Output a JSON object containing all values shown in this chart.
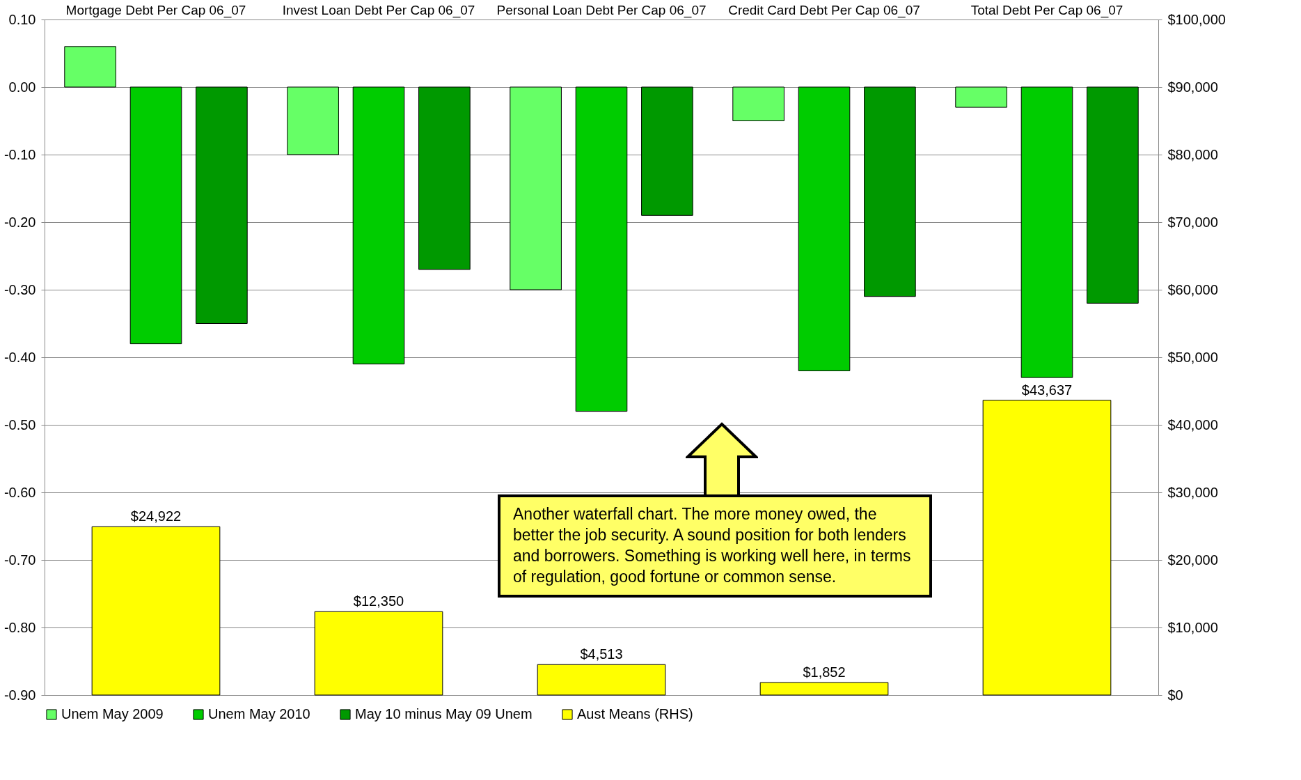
{
  "chart_data": {
    "type": "bar",
    "categories": [
      "Mortgage Debt Per Cap 06_07",
      "Invest Loan Debt Per Cap 06_07",
      "Personal Loan Debt Per Cap 06_07",
      "Credit Card Debt Per Cap 06_07",
      "Total Debt Per Cap 06_07"
    ],
    "series": [
      {
        "name": "Unem May 2009",
        "color": "#66ff66",
        "values": [
          0.06,
          -0.1,
          -0.3,
          -0.05,
          -0.03
        ]
      },
      {
        "name": "Unem May 2010",
        "color": "#00cc00",
        "values": [
          -0.38,
          -0.41,
          -0.48,
          -0.42,
          -0.43
        ]
      },
      {
        "name": "May 10 minus May 09 Unem",
        "color": "#009900",
        "values": [
          -0.35,
          -0.27,
          -0.19,
          -0.31,
          -0.32
        ]
      },
      {
        "name": "Aust Means (RHS)",
        "color": "#ffff00",
        "axis": "y2",
        "values": [
          24922,
          12350,
          4513,
          1852,
          43637
        ],
        "value_labels": [
          "$24,922",
          "$12,350",
          "$4,513",
          "$1,852",
          "$43,637"
        ]
      }
    ],
    "ylim": [
      -0.9,
      0.1
    ],
    "yticks": [
      {
        "value": 0.1,
        "label": "0.10"
      },
      {
        "value": 0,
        "label": "0.00"
      },
      {
        "value": -0.1,
        "label": "-0.10"
      },
      {
        "value": -0.2,
        "label": "-0.20"
      },
      {
        "value": -0.3,
        "label": "-0.30"
      },
      {
        "value": -0.4,
        "label": "-0.40"
      },
      {
        "value": -0.5,
        "label": "-0.50"
      },
      {
        "value": -0.6,
        "label": "-0.60"
      },
      {
        "value": -0.7,
        "label": "-0.70"
      },
      {
        "value": -0.8,
        "label": "-0.80"
      },
      {
        "value": -0.9,
        "label": "-0.90"
      }
    ],
    "y2lim": [
      0,
      100000
    ],
    "y2ticks": [
      {
        "value": 0,
        "label": "$0"
      },
      {
        "value": 10000,
        "label": "$10,000"
      },
      {
        "value": 20000,
        "label": "$20,000"
      },
      {
        "value": 30000,
        "label": "$30,000"
      },
      {
        "value": 40000,
        "label": "$40,000"
      },
      {
        "value": 50000,
        "label": "$50,000"
      },
      {
        "value": 60000,
        "label": "$60,000"
      },
      {
        "value": 70000,
        "label": "$70,000"
      },
      {
        "value": 80000,
        "label": "$80,000"
      },
      {
        "value": 90000,
        "label": "$90,000"
      },
      {
        "value": 100000,
        "label": "$100,000"
      }
    ],
    "grid": "y",
    "legend": "bottom",
    "annotations": [
      "Another waterfall chart. The more money owed, the better the job security.  A sound position for both lenders and borrowers. Something is working well here, in terms of regulation, good fortune or common sense."
    ]
  }
}
